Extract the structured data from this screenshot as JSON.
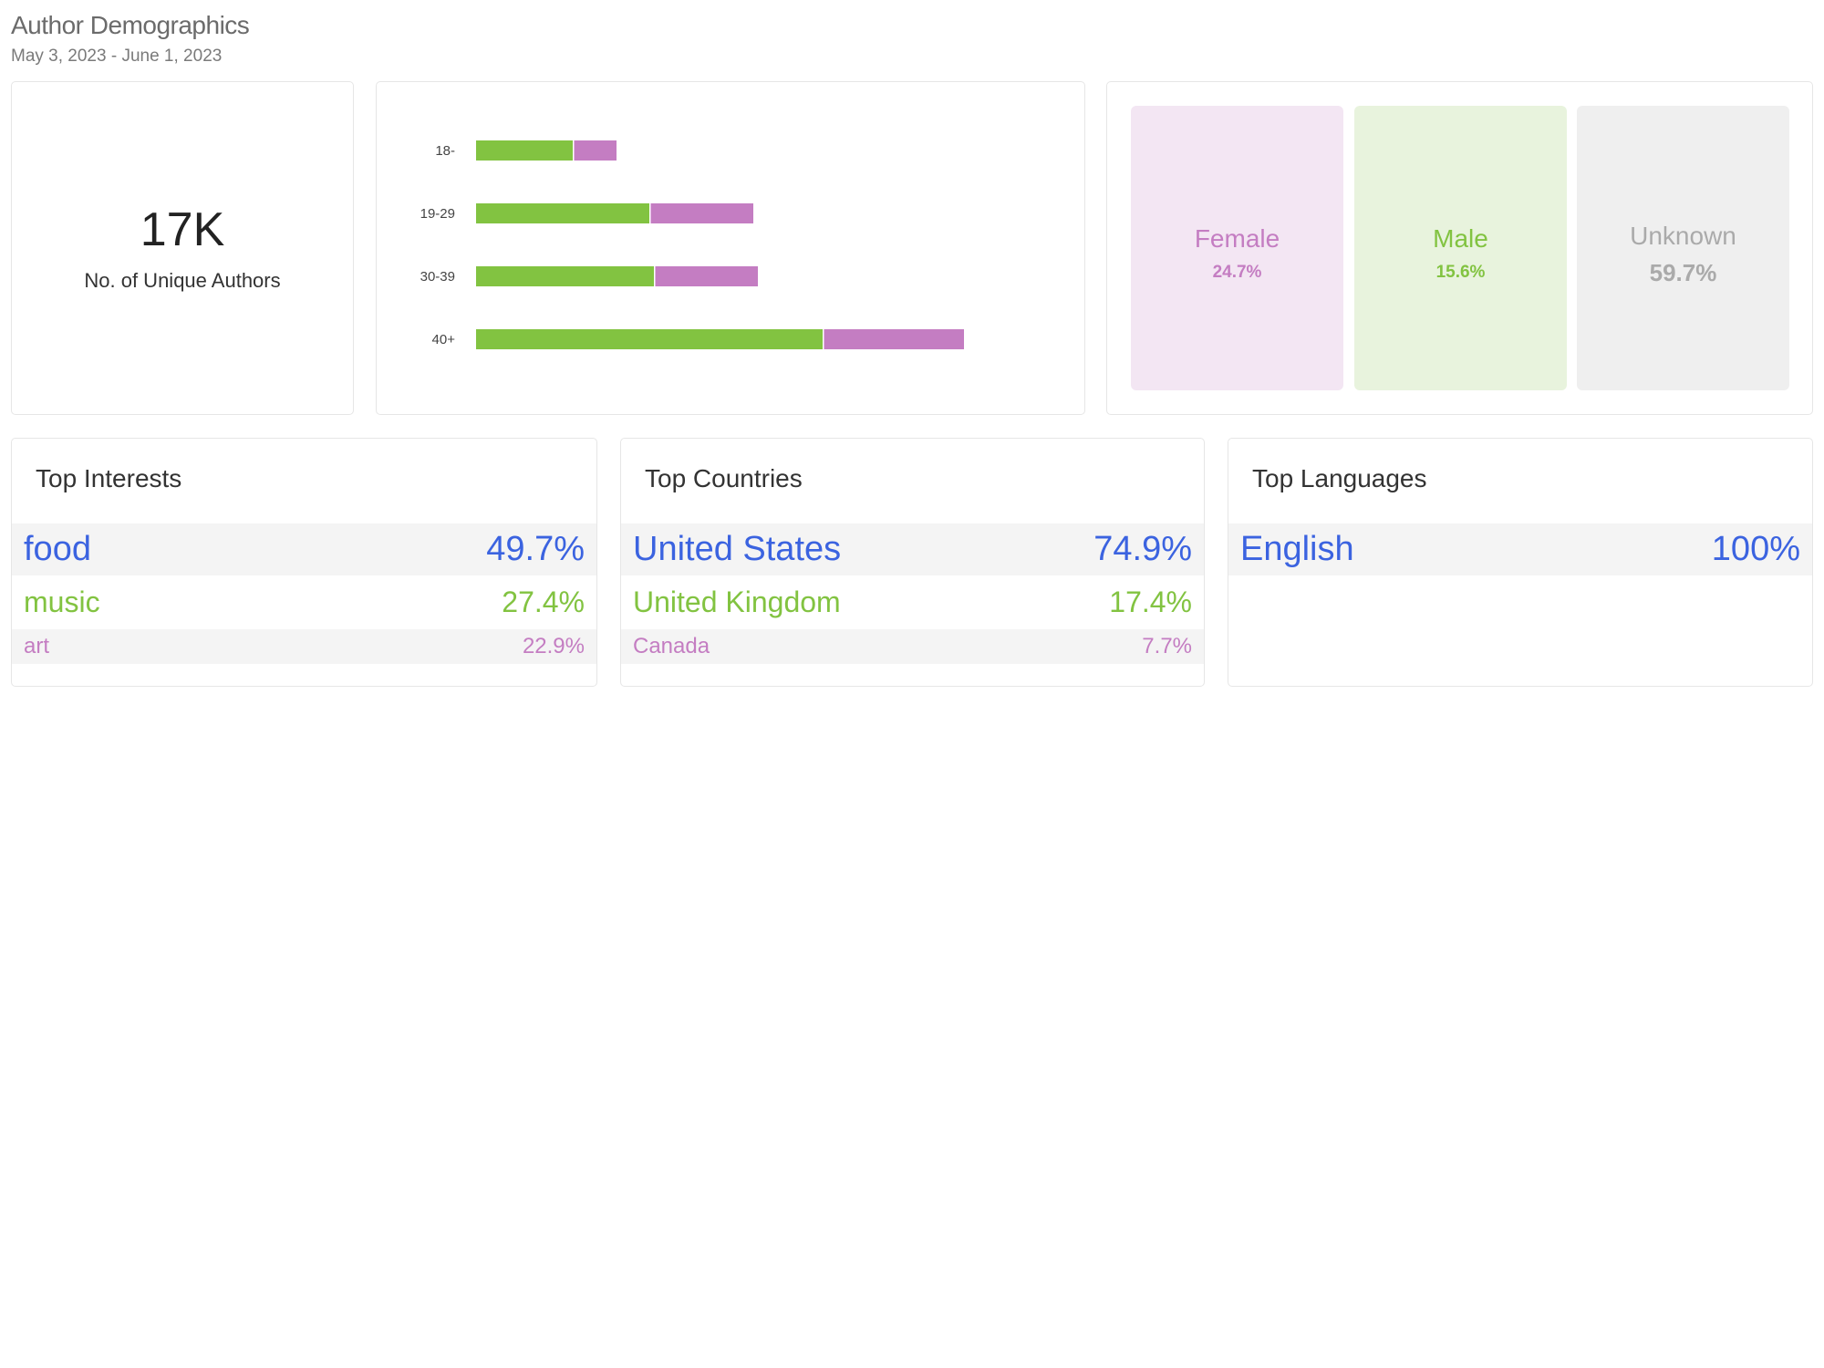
{
  "header": {
    "title": "Author Demographics",
    "date_range": "May 3, 2023 - June 1, 2023"
  },
  "kpi": {
    "value": "17K",
    "label": "No. of Unique Authors"
  },
  "colors": {
    "green": "#82c341",
    "purple": "#c47dc2",
    "blue": "#3b63e0",
    "gray_text": "#aaaaaa",
    "female_bg": "#f3e6f3",
    "male_bg": "#e8f3dd",
    "unknown_bg": "#efefef"
  },
  "chart_data": {
    "type": "bar",
    "orientation": "horizontal",
    "stacked": true,
    "categories": [
      "18-",
      "19-29",
      "30-39",
      "40+"
    ],
    "series": [
      {
        "color": "#82c341",
        "values": [
          106,
          190,
          195,
          380
        ]
      },
      {
        "color": "#c47dc2",
        "values": [
          48,
          114,
          114,
          155
        ]
      }
    ],
    "xlim": [
      0,
      620
    ],
    "grid": false,
    "legend": "none"
  },
  "gender": [
    {
      "label": "Female",
      "pct": "24.7%",
      "color": "#c47dc2",
      "bg": "#f3e6f3"
    },
    {
      "label": "Male",
      "pct": "15.6%",
      "color": "#82c341",
      "bg": "#e8f3dd"
    },
    {
      "label": "Unknown",
      "pct": "59.7%",
      "color": "#aaaaaa",
      "bg": "#efefef"
    }
  ],
  "interests": {
    "title": "Top Interests",
    "items": [
      {
        "name": "food",
        "pct": "49.7%"
      },
      {
        "name": "music",
        "pct": "27.4%"
      },
      {
        "name": "art",
        "pct": "22.9%"
      }
    ]
  },
  "countries": {
    "title": "Top Countries",
    "items": [
      {
        "name": "United States",
        "pct": "74.9%"
      },
      {
        "name": "United Kingdom",
        "pct": "17.4%"
      },
      {
        "name": "Canada",
        "pct": "7.7%"
      }
    ]
  },
  "languages": {
    "title": "Top Languages",
    "items": [
      {
        "name": "English",
        "pct": "100%"
      }
    ]
  }
}
